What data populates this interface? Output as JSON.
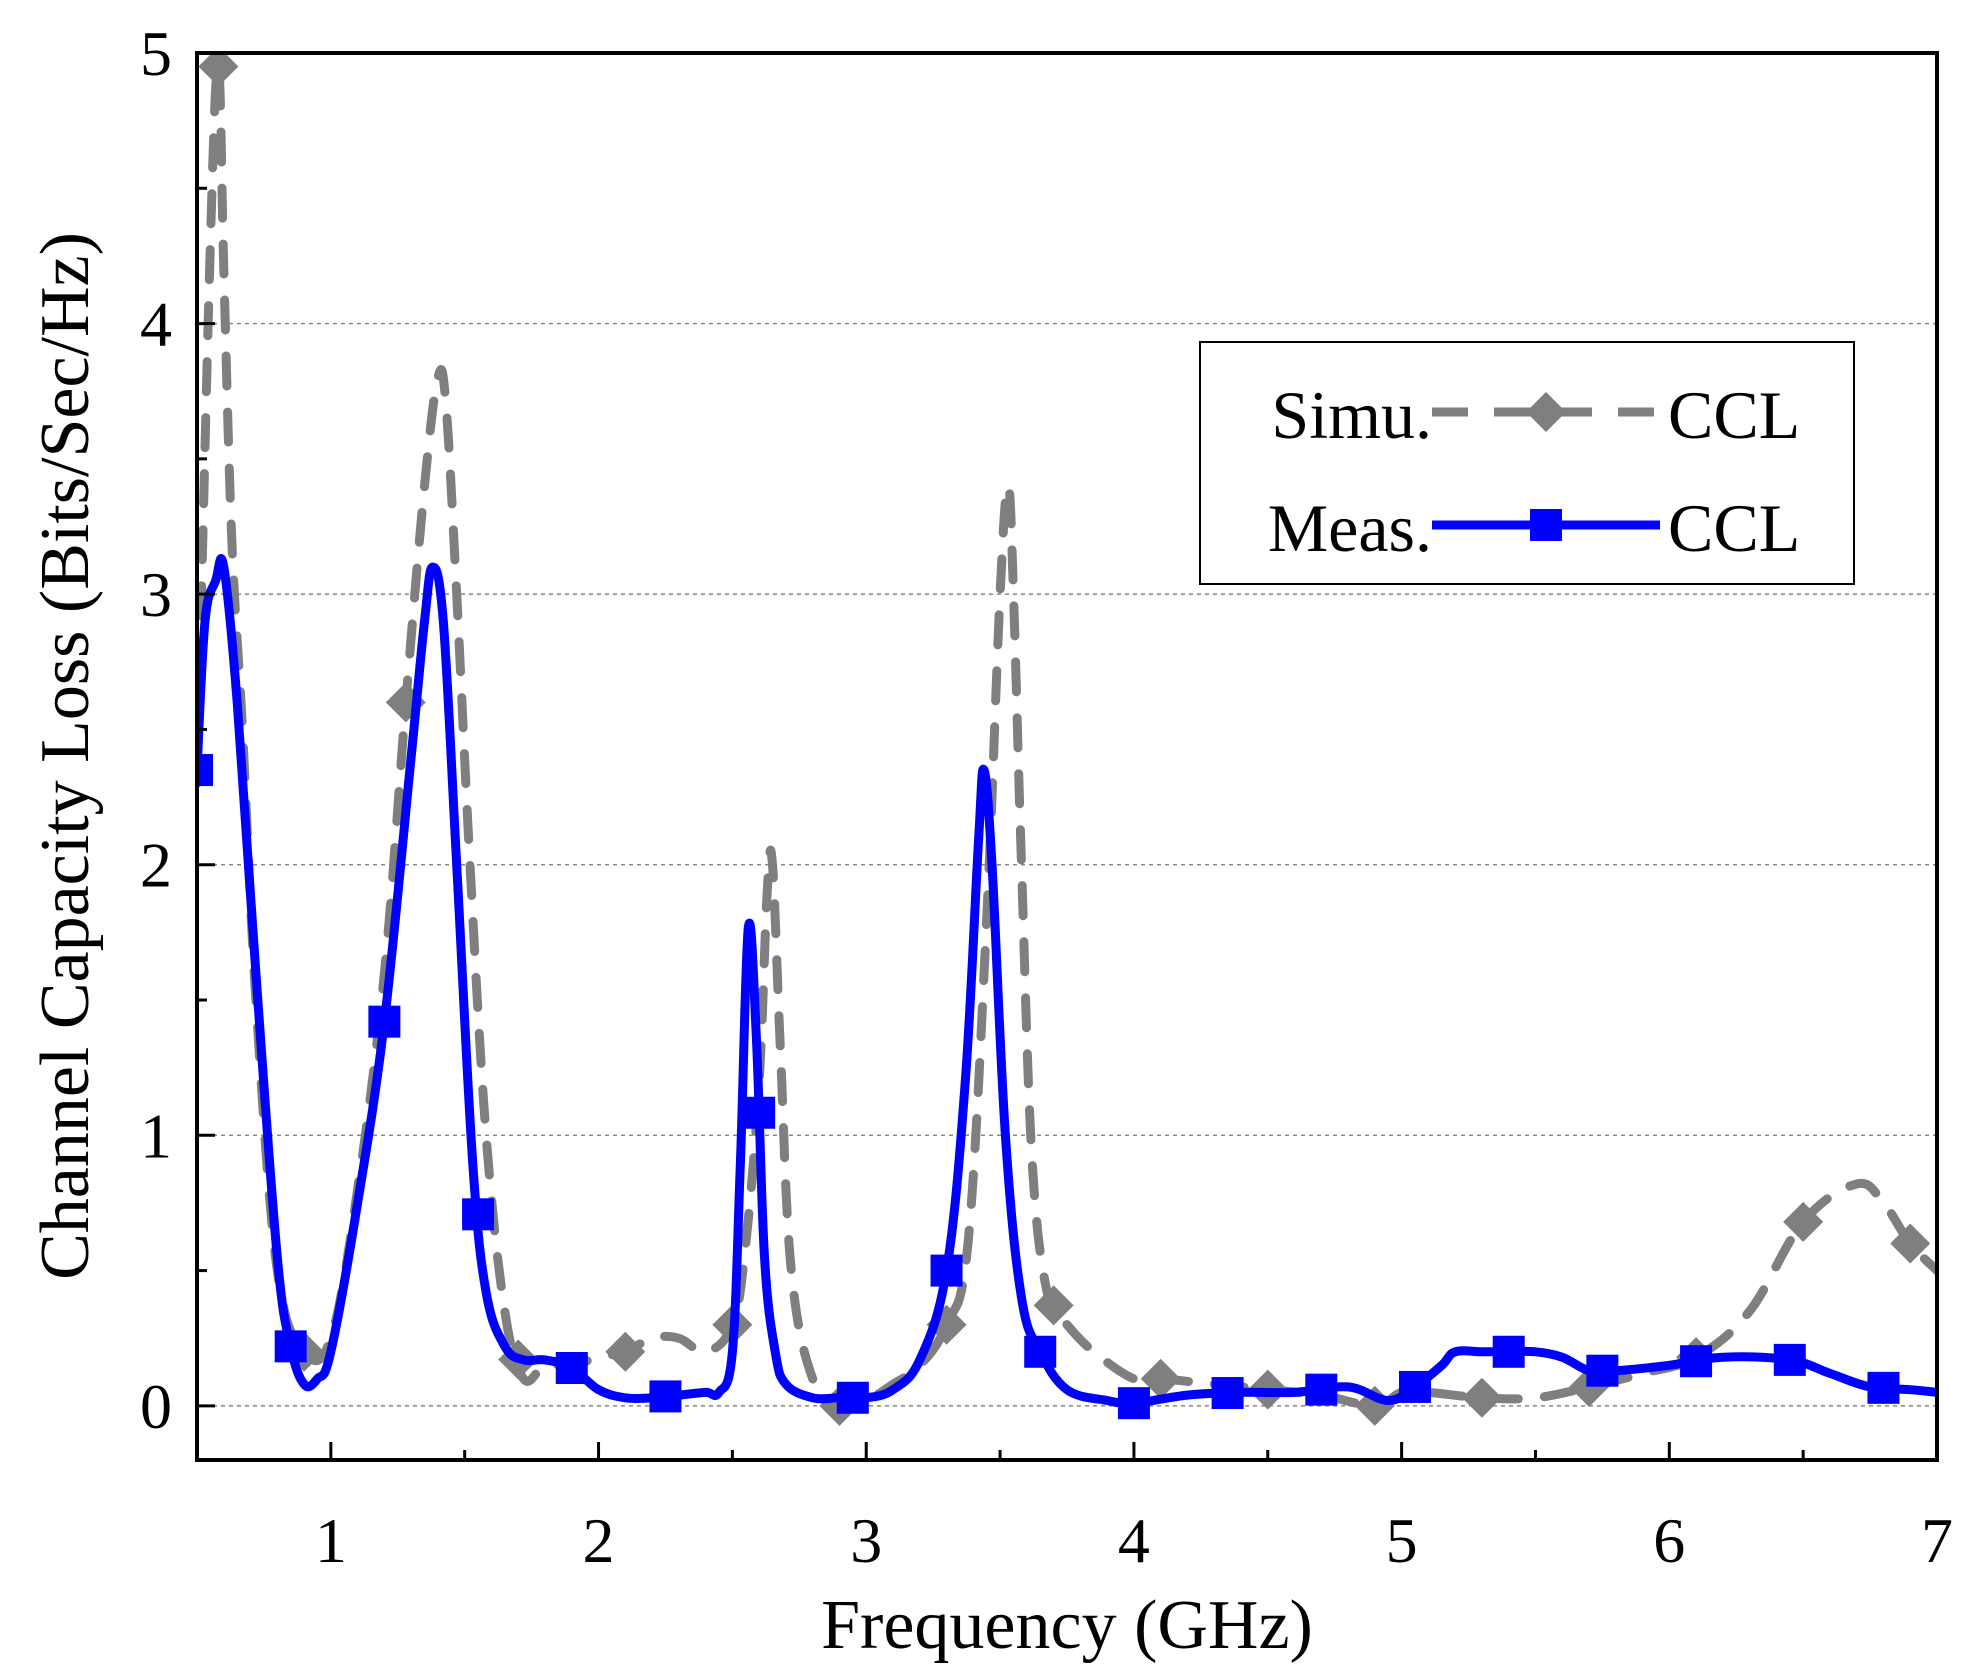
{
  "chart_data": {
    "type": "line",
    "title": "",
    "xlabel": "Frequency (GHz)",
    "ylabel": "Channel Capacity Loss (Bits/Sec/Hz)",
    "xlim": [
      0.5,
      7
    ],
    "ylim": [
      -0.2,
      5
    ],
    "xticks": [
      1,
      2,
      3,
      4,
      5,
      6,
      7
    ],
    "yticks": [
      0,
      1,
      2,
      3,
      4,
      5
    ],
    "grid": "horizontal dotted at 0, 1, 2, 3, 4",
    "legend_position": "top-right",
    "series": [
      {
        "name": "CCL",
        "legend_prefix": "Simu.",
        "line_style": "dashed",
        "marker": "diamond",
        "color": "#7f7f7f",
        "x": [
          0.5,
          0.55,
          0.58,
          0.6,
          0.63,
          0.67,
          0.72,
          0.8,
          0.9,
          1.0,
          1.1,
          1.2,
          1.28,
          1.35,
          1.4,
          1.43,
          1.47,
          1.52,
          1.58,
          1.65,
          1.72,
          1.8,
          1.9,
          2.0,
          2.1,
          2.2,
          2.3,
          2.4,
          2.5,
          2.55,
          2.6,
          2.63,
          2.65,
          2.68,
          2.72,
          2.8,
          2.9,
          3.0,
          3.1,
          3.2,
          3.3,
          3.38,
          3.45,
          3.5,
          3.53,
          3.55,
          3.58,
          3.62,
          3.68,
          3.75,
          3.85,
          4.0,
          4.1,
          4.3,
          4.5,
          4.7,
          4.9,
          5.0,
          5.1,
          5.3,
          5.5,
          5.7,
          5.9,
          6.1,
          6.3,
          6.5,
          6.7,
          6.8,
          6.9,
          7.0
        ],
        "y": [
          2.3,
          4.3,
          4.95,
          4.2,
          3.2,
          2.5,
          1.5,
          0.5,
          0.2,
          0.25,
          0.8,
          1.6,
          2.6,
          3.4,
          3.8,
          3.7,
          3.0,
          2.0,
          1.0,
          0.35,
          0.1,
          0.15,
          0.15,
          0.18,
          0.2,
          0.25,
          0.25,
          0.2,
          0.3,
          0.6,
          1.2,
          1.9,
          2.0,
          1.3,
          0.5,
          0.1,
          0.0,
          0.02,
          0.08,
          0.15,
          0.3,
          0.6,
          1.8,
          3.0,
          3.4,
          3.0,
          2.0,
          0.9,
          0.4,
          0.3,
          0.2,
          0.1,
          0.1,
          0.08,
          0.06,
          0.04,
          0.0,
          0.05,
          0.05,
          0.03,
          0.03,
          0.07,
          0.12,
          0.18,
          0.35,
          0.68,
          0.82,
          0.75,
          0.6,
          0.5
        ],
        "marker_x": [
          0.58,
          0.9,
          1.28,
          1.7,
          2.1,
          2.5,
          2.9,
          3.3,
          3.7,
          4.1,
          4.5,
          4.9,
          5.3,
          5.7,
          6.1,
          6.5,
          6.9
        ]
      },
      {
        "name": "CCL",
        "legend_prefix": "Meas.",
        "line_style": "solid",
        "marker": "square",
        "color": "#0000ff",
        "x": [
          0.5,
          0.53,
          0.57,
          0.6,
          0.65,
          0.72,
          0.8,
          0.85,
          0.9,
          0.95,
          1.0,
          1.1,
          1.2,
          1.3,
          1.35,
          1.38,
          1.42,
          1.47,
          1.53,
          1.58,
          1.65,
          1.72,
          1.8,
          1.9,
          2.0,
          2.1,
          2.2,
          2.3,
          2.4,
          2.45,
          2.5,
          2.53,
          2.56,
          2.59,
          2.62,
          2.66,
          2.7,
          2.8,
          2.9,
          3.0,
          3.1,
          3.2,
          3.3,
          3.37,
          3.42,
          3.44,
          3.47,
          3.52,
          3.58,
          3.65,
          3.75,
          3.9,
          4.0,
          4.2,
          4.4,
          4.6,
          4.8,
          4.95,
          5.05,
          5.15,
          5.2,
          5.3,
          5.4,
          5.5,
          5.6,
          5.7,
          5.8,
          6.0,
          6.2,
          6.45,
          6.6,
          6.75,
          6.9,
          7.0
        ],
        "y": [
          2.35,
          2.9,
          3.05,
          3.1,
          2.6,
          1.6,
          0.55,
          0.22,
          0.08,
          0.1,
          0.2,
          0.75,
          1.42,
          2.4,
          2.9,
          3.1,
          2.9,
          2.0,
          0.9,
          0.42,
          0.22,
          0.17,
          0.17,
          0.14,
          0.06,
          0.03,
          0.03,
          0.04,
          0.05,
          0.05,
          0.2,
          0.9,
          1.77,
          1.35,
          0.55,
          0.2,
          0.08,
          0.03,
          0.03,
          0.03,
          0.06,
          0.17,
          0.5,
          1.2,
          2.1,
          2.35,
          2.0,
          1.0,
          0.4,
          0.2,
          0.06,
          0.02,
          0.01,
          0.04,
          0.05,
          0.05,
          0.07,
          0.02,
          0.07,
          0.15,
          0.2,
          0.2,
          0.2,
          0.2,
          0.18,
          0.13,
          0.13,
          0.15,
          0.18,
          0.17,
          0.12,
          0.07,
          0.06,
          0.05
        ],
        "marker_x": [
          0.5,
          0.85,
          1.2,
          1.55,
          1.9,
          2.25,
          2.6,
          2.95,
          3.3,
          3.65,
          4.0,
          4.35,
          4.7,
          5.05,
          5.4,
          5.75,
          6.1,
          6.45,
          6.8
        ]
      }
    ]
  }
}
